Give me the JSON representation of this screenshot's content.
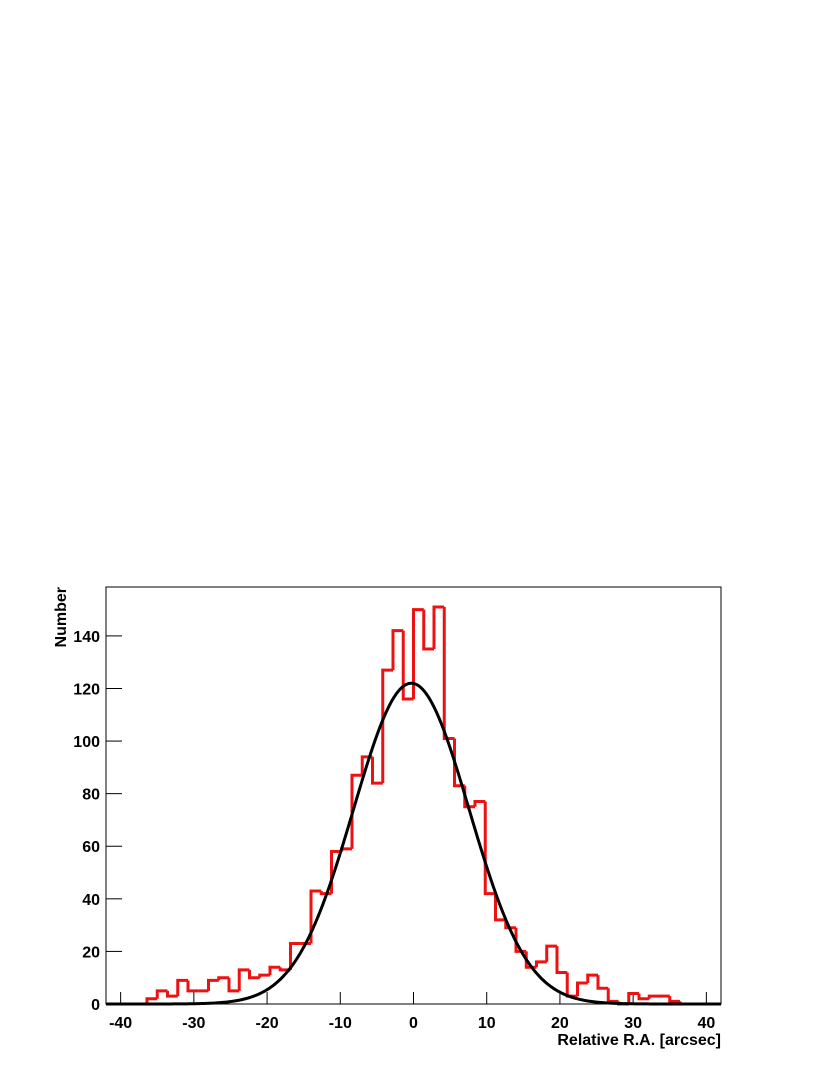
{
  "chart_data": {
    "type": "histogram",
    "x_label": "Relative R.A. [arcsec]",
    "y_label": "Number",
    "bins": [
      -42,
      -40.6,
      -39.2,
      -37.8,
      -36.4,
      -35,
      -33.6,
      -32.2,
      -30.8,
      -29.4,
      -28,
      -26.6,
      -25.2,
      -23.8,
      -22.4,
      -21,
      -19.6,
      -18.2,
      -16.8,
      -15.4,
      -14,
      -12.6,
      -11.2,
      -9.8,
      -8.4,
      -7,
      -5.6,
      -4.2,
      -2.8,
      -1.4,
      0,
      1.4,
      2.8,
      4.2,
      5.6,
      7,
      8.4,
      9.8,
      11.2,
      12.6,
      14,
      15.4,
      16.8,
      18.2,
      19.6,
      21,
      22.4,
      23.8,
      25.2,
      26.6,
      28,
      29.4,
      30.8,
      32.2,
      33.6,
      35,
      36.4,
      37.8,
      39.2,
      40.6,
      42
    ],
    "values": [
      0,
      0,
      0,
      0,
      2,
      5,
      3,
      9,
      5,
      5,
      9,
      10,
      5,
      13,
      10,
      11,
      14,
      13,
      23,
      23,
      43,
      42,
      58,
      59,
      87,
      94,
      84,
      127,
      142,
      116,
      150,
      135,
      151,
      101,
      83,
      75,
      77,
      42,
      32,
      29,
      20,
      14,
      16,
      22,
      12,
      3,
      8,
      11,
      6,
      1,
      0,
      4,
      2,
      3,
      3,
      1,
      0,
      0,
      0,
      0
    ],
    "color": "#ee1111",
    "fit": {
      "type": "gaussian",
      "amplitude": 122,
      "mean": -0.3,
      "sigma": 7.9,
      "color": "#000000"
    },
    "xlim": [
      -42,
      42
    ],
    "ylim": [
      0,
      158.6
    ],
    "xticks": [
      -40,
      -30,
      -20,
      -10,
      0,
      10,
      20,
      30,
      40
    ],
    "yticks": [
      0,
      20,
      40,
      60,
      80,
      100,
      120,
      140
    ]
  }
}
